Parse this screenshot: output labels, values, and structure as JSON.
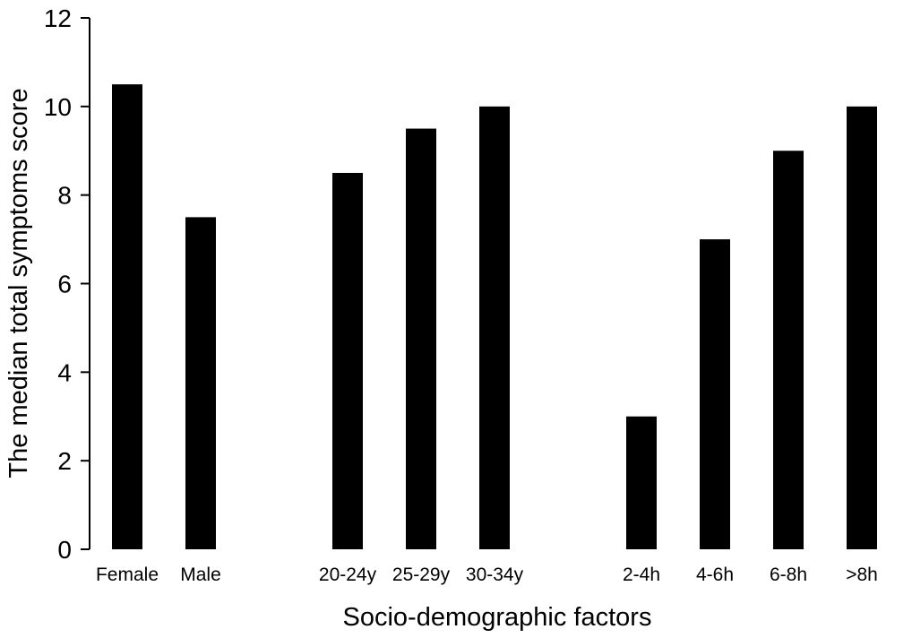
{
  "chart_data": {
    "type": "bar",
    "categories": [
      "Female",
      "Male",
      "20-24y",
      "25-29y",
      "30-34y",
      "2-4h",
      "4-6h",
      "6-8h",
      ">8h"
    ],
    "values": [
      10.5,
      7.5,
      8.5,
      9.5,
      10.0,
      3.0,
      7.0,
      9.0,
      10.0
    ],
    "xlabel": "Socio-demographic factors",
    "ylabel": "The median total symptoms score",
    "ylim": [
      0,
      12
    ],
    "yticks": [
      0,
      2,
      4,
      6,
      8,
      10,
      12
    ],
    "groups": [
      [
        "Female",
        "Male"
      ],
      [
        "20-24y",
        "25-29y",
        "30-34y"
      ],
      [
        "2-4h",
        "4-6h",
        "6-8h",
        ">8h"
      ]
    ],
    "bar_color": "#000000",
    "grid": false,
    "legend": "none"
  }
}
